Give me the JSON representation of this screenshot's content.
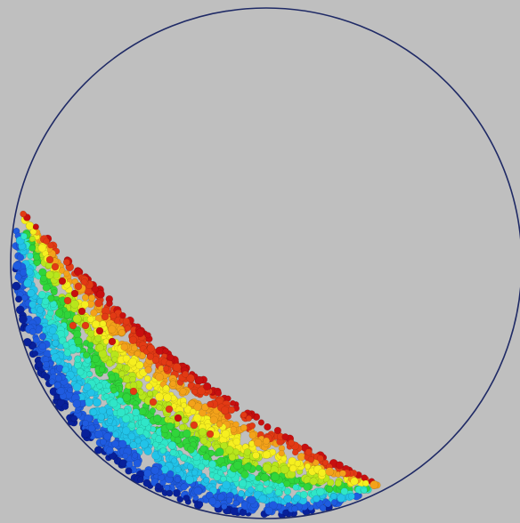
{
  "scene": {
    "background": "#bfbfbf",
    "drum_outline_color": "#1f2a66",
    "colormap": [
      "#08209a",
      "#1f5be0",
      "#22c3e8",
      "#2fe6c8",
      "#30d53a",
      "#b7e61c",
      "#f6ef1f",
      "#f3a21a",
      "#e23a14",
      "#c70f0f"
    ]
  }
}
